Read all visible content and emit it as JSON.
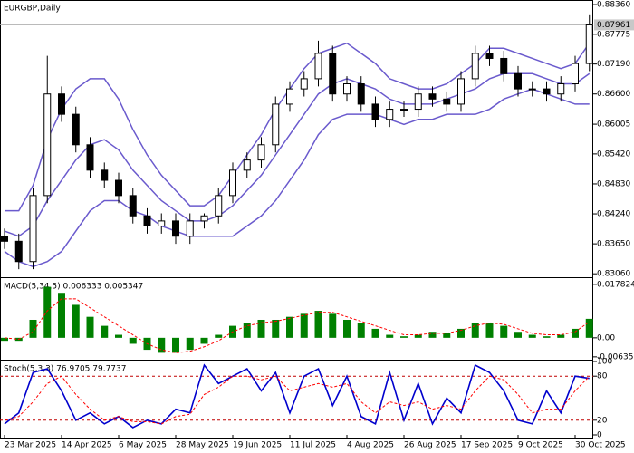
{
  "chart_data": [
    {
      "type": "candlestick",
      "title": "EURGBP,Daily",
      "categories": [
        "23 Mar 2025",
        null,
        null,
        null,
        "14 Apr 2025",
        null,
        null,
        null,
        "6 May 2025",
        null,
        null,
        null,
        "28 May 2025",
        null,
        null,
        null,
        "19 Jun 2025",
        null,
        null,
        null,
        "11 Jul 2025",
        null,
        null,
        null,
        "4 Aug 2025",
        null,
        null,
        null,
        "26 Aug 2025",
        null,
        null,
        null,
        "17 Sep 2025",
        null,
        null,
        null,
        "9 Oct 2025",
        null,
        null,
        null,
        "30 Oct 2025",
        null
      ],
      "open": [
        0.838,
        0.837,
        0.833,
        0.846,
        0.866,
        0.862,
        0.856,
        0.851,
        0.849,
        0.846,
        0.842,
        0.84,
        0.841,
        0.838,
        0.841,
        0.842,
        0.846,
        0.851,
        0.853,
        0.856,
        0.864,
        0.867,
        0.869,
        0.874,
        0.866,
        0.868,
        0.864,
        0.861,
        0.863,
        0.863,
        0.866,
        0.865,
        0.864,
        0.869,
        0.874,
        0.873,
        0.87,
        0.867,
        0.867,
        0.866,
        0.868,
        0.872
      ],
      "high": [
        0.8395,
        0.8385,
        0.8475,
        0.8735,
        0.8675,
        0.8635,
        0.8575,
        0.8525,
        0.8505,
        0.8475,
        0.8435,
        0.8425,
        0.8425,
        0.8425,
        0.8425,
        0.8475,
        0.8525,
        0.8545,
        0.8575,
        0.8655,
        0.8685,
        0.8705,
        0.8765,
        0.8755,
        0.8695,
        0.8695,
        0.8655,
        0.8645,
        0.8645,
        0.8675,
        0.8675,
        0.8665,
        0.8705,
        0.8755,
        0.8755,
        0.8745,
        0.8715,
        0.8685,
        0.8685,
        0.8695,
        0.8735,
        0.8815
      ],
      "low": [
        0.8355,
        0.8315,
        0.8315,
        0.8445,
        0.8605,
        0.8545,
        0.8495,
        0.8475,
        0.8445,
        0.8405,
        0.8385,
        0.8385,
        0.8365,
        0.8365,
        0.8395,
        0.8405,
        0.8445,
        0.8495,
        0.8515,
        0.8545,
        0.8625,
        0.8655,
        0.8675,
        0.8645,
        0.8645,
        0.8625,
        0.8595,
        0.8595,
        0.8615,
        0.8615,
        0.8635,
        0.8625,
        0.8625,
        0.8675,
        0.8715,
        0.8685,
        0.8655,
        0.8655,
        0.8645,
        0.8645,
        0.8665,
        0.8705
      ],
      "close": [
        0.837,
        0.833,
        0.846,
        0.866,
        0.862,
        0.856,
        0.851,
        0.849,
        0.846,
        0.842,
        0.84,
        0.841,
        0.838,
        0.841,
        0.842,
        0.846,
        0.851,
        0.853,
        0.856,
        0.864,
        0.867,
        0.869,
        0.874,
        0.866,
        0.868,
        0.864,
        0.861,
        0.863,
        0.863,
        0.866,
        0.865,
        0.864,
        0.869,
        0.874,
        0.873,
        0.87,
        0.867,
        0.867,
        0.866,
        0.868,
        0.872,
        0.8796
      ],
      "bands": {
        "color": "#6a5acd",
        "upper": [
          0.843,
          0.843,
          0.848,
          0.857,
          0.863,
          0.867,
          0.869,
          0.869,
          0.865,
          0.859,
          0.854,
          0.85,
          0.847,
          0.844,
          0.844,
          0.846,
          0.85,
          0.854,
          0.858,
          0.863,
          0.867,
          0.871,
          0.874,
          0.875,
          0.876,
          0.874,
          0.872,
          0.869,
          0.868,
          0.867,
          0.867,
          0.868,
          0.87,
          0.872,
          0.875,
          0.875,
          0.874,
          0.873,
          0.872,
          0.871,
          0.872,
          0.876
        ],
        "middle": [
          0.839,
          0.838,
          0.84,
          0.845,
          0.849,
          0.853,
          0.856,
          0.857,
          0.855,
          0.851,
          0.848,
          0.845,
          0.843,
          0.841,
          0.841,
          0.842,
          0.844,
          0.847,
          0.85,
          0.854,
          0.858,
          0.862,
          0.866,
          0.868,
          0.869,
          0.868,
          0.867,
          0.865,
          0.864,
          0.864,
          0.864,
          0.865,
          0.866,
          0.867,
          0.869,
          0.87,
          0.87,
          0.87,
          0.869,
          0.868,
          0.868,
          0.87
        ],
        "lower": [
          0.835,
          0.833,
          0.832,
          0.833,
          0.835,
          0.839,
          0.843,
          0.845,
          0.845,
          0.843,
          0.842,
          0.84,
          0.839,
          0.838,
          0.838,
          0.838,
          0.838,
          0.84,
          0.842,
          0.845,
          0.849,
          0.853,
          0.858,
          0.861,
          0.862,
          0.862,
          0.862,
          0.861,
          0.86,
          0.861,
          0.861,
          0.862,
          0.862,
          0.862,
          0.863,
          0.865,
          0.866,
          0.867,
          0.866,
          0.865,
          0.864,
          0.864
        ]
      },
      "last_price": {
        "value": 0.87961,
        "label": "0.87961"
      },
      "ylim": [
        0.8301,
        0.8845
      ],
      "yticks": [
        {
          "value": 0.8836,
          "label": "0.88360"
        },
        {
          "value": 0.87775,
          "label": "0.87775"
        },
        {
          "value": 0.8719,
          "label": "0.87190"
        },
        {
          "value": 0.866,
          "label": "0.86600"
        },
        {
          "value": 0.86005,
          "label": "0.86005"
        },
        {
          "value": 0.8542,
          "label": "0.85420"
        },
        {
          "value": 0.8483,
          "label": "0.84830"
        },
        {
          "value": 0.8424,
          "label": "0.84240"
        },
        {
          "value": 0.8365,
          "label": "0.83650"
        },
        {
          "value": 0.8306,
          "label": "0.83060"
        }
      ]
    },
    {
      "type": "bar",
      "title": "MACD(5,34,5) 0.006333 0.005347",
      "color": "#008000",
      "values": [
        -0.001,
        -0.001,
        0.006,
        0.017,
        0.015,
        0.011,
        0.007,
        0.004,
        0.001,
        -0.002,
        -0.004,
        -0.005,
        -0.005,
        -0.004,
        -0.002,
        0.001,
        0.004,
        0.005,
        0.006,
        0.006,
        0.007,
        0.008,
        0.009,
        0.008,
        0.006,
        0.005,
        0.003,
        0.001,
        0.0005,
        0.001,
        0.002,
        0.0015,
        0.003,
        0.005,
        0.005,
        0.004,
        0.002,
        0.001,
        0.0005,
        0.001,
        0.003,
        0.006333
      ],
      "signal": {
        "color": "#ff0000",
        "values": [
          0,
          -0.0005,
          0.002,
          0.009,
          0.013,
          0.013,
          0.01,
          0.007,
          0.004,
          0.001,
          -0.002,
          -0.004,
          -0.005,
          -0.0045,
          -0.003,
          -0.001,
          0.002,
          0.004,
          0.005,
          0.0055,
          0.0065,
          0.0075,
          0.0085,
          0.0085,
          0.007,
          0.0055,
          0.004,
          0.0025,
          0.001,
          0.001,
          0.0015,
          0.0015,
          0.0025,
          0.004,
          0.005,
          0.0045,
          0.003,
          0.0015,
          0.001,
          0.001,
          0.002,
          0.005347
        ]
      },
      "ylim": [
        -0.0073,
        0.0196
      ],
      "yticks": [
        0.017824,
        {
          "value": 0,
          "label": "0.00"
        },
        -0.006352
      ]
    },
    {
      "type": "line",
      "title": "Stoch(5,3,3) 76.9705 79.7737",
      "series": [
        {
          "color": "#0000cd",
          "values": [
            15,
            30,
            85,
            90,
            60,
            20,
            30,
            15,
            25,
            10,
            20,
            15,
            35,
            30,
            95,
            70,
            80,
            90,
            60,
            85,
            30,
            80,
            90,
            40,
            80,
            25,
            15,
            85,
            20,
            70,
            15,
            50,
            30,
            95,
            85,
            60,
            20,
            15,
            60,
            30,
            80,
            76.9705
          ]
        },
        {
          "color": "#ff0000",
          "dashed": true,
          "values": [
            20,
            25,
            45,
            70,
            80,
            55,
            35,
            20,
            25,
            18,
            18,
            15,
            25,
            28,
            55,
            65,
            80,
            80,
            75,
            80,
            60,
            65,
            70,
            65,
            70,
            45,
            30,
            45,
            40,
            45,
            35,
            40,
            35,
            60,
            80,
            75,
            55,
            30,
            35,
            35,
            60,
            79.7737
          ]
        }
      ],
      "levels": [
        80,
        20
      ],
      "level_color": "#c00000",
      "ylim": [
        0,
        100
      ],
      "yticks": [
        100,
        80,
        20,
        0
      ]
    }
  ]
}
